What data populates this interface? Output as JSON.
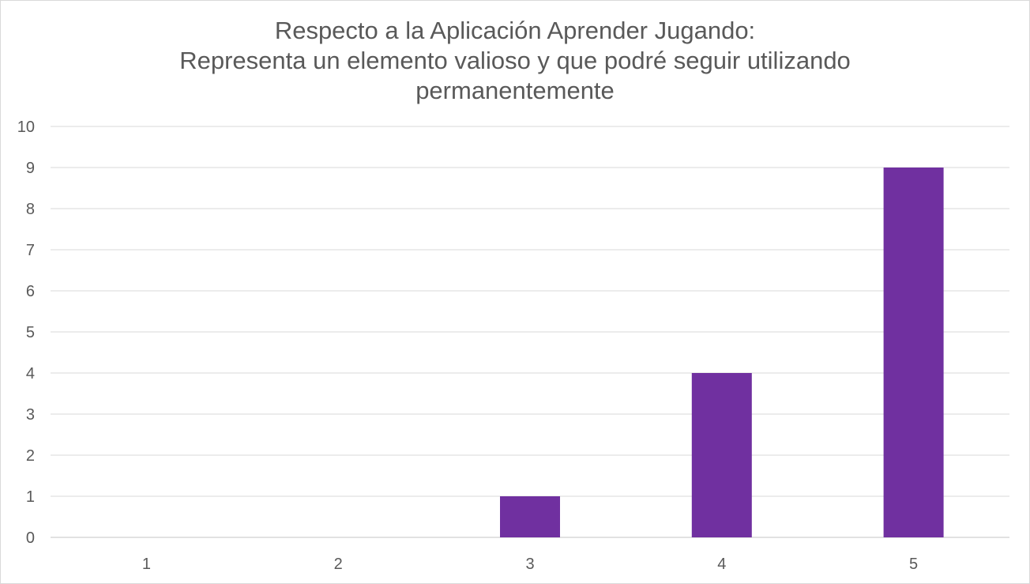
{
  "chart_data": {
    "type": "bar",
    "title_lines": [
      "Respecto a la Aplicación Aprender Jugando:",
      "Representa un elemento valioso y que podré seguir utilizando",
      "permanentemente"
    ],
    "categories": [
      "1",
      "2",
      "3",
      "4",
      "5"
    ],
    "values": [
      0,
      0,
      1,
      4,
      9
    ],
    "ylim": [
      0,
      10
    ],
    "yticks": [
      0,
      1,
      2,
      3,
      4,
      5,
      6,
      7,
      8,
      9,
      10
    ],
    "grid": true,
    "legend": "none",
    "xlabel": "",
    "ylabel": "",
    "bar_color": "#7030a0",
    "grid_color": "#d9d9d9",
    "text_color": "#595959"
  }
}
